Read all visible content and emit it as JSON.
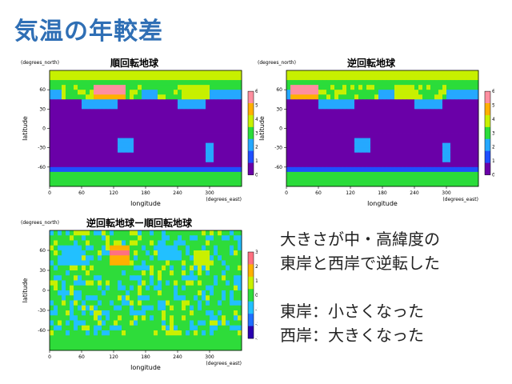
{
  "slide": {
    "title": "気温の年較差"
  },
  "notes": {
    "lines": [
      "大きさが中・高緯度の",
      "東岸と西岸で逆転した"
    ],
    "lines2": [
      "東岸：小さくなった",
      "西岸：大きくなった"
    ]
  },
  "chart_data": [
    {
      "type": "heatmap",
      "title": "順回転地球",
      "xlabel": "longitude",
      "ylabel": "latitude",
      "x_unit": "(degrees_east)",
      "y_unit": "(degrees_north)",
      "x_ticks": [
        "0",
        "60",
        "120",
        "180",
        "240",
        "300"
      ],
      "y_ticks": [
        "60",
        "30",
        "0",
        "-30",
        "-60"
      ],
      "xlim": [
        0,
        360
      ],
      "ylim": [
        -90,
        90
      ],
      "colorbar": {
        "ticks": [
          "60",
          "50",
          "40",
          "30",
          "20",
          "10",
          "0"
        ],
        "range": [
          0,
          60
        ],
        "colors": [
          "#6a00a8",
          "#1f4fff",
          "#25a8ff",
          "#2bdc3a",
          "#c7f000",
          "#ffb000",
          "#ff8fa0"
        ]
      }
    },
    {
      "type": "heatmap",
      "title": "逆回転地球",
      "xlabel": "longitude",
      "ylabel": "latitude",
      "x_unit": "(degrees_east)",
      "y_unit": "(degrees_north)",
      "x_ticks": [
        "0",
        "60",
        "120",
        "180",
        "240",
        "300"
      ],
      "y_ticks": [
        "60",
        "30",
        "0",
        "-30",
        "-60"
      ],
      "xlim": [
        0,
        360
      ],
      "ylim": [
        -90,
        90
      ],
      "colorbar": {
        "ticks": [
          "60",
          "50",
          "40",
          "30",
          "20",
          "10",
          "0"
        ],
        "range": [
          0,
          60
        ],
        "colors": [
          "#6a00a8",
          "#1f4fff",
          "#25a8ff",
          "#2bdc3a",
          "#c7f000",
          "#ffb000",
          "#ff8fa0"
        ]
      }
    },
    {
      "type": "heatmap",
      "title": "逆回転地球ー順回転地球",
      "xlabel": "longitude",
      "ylabel": "latitude",
      "x_unit": "(degrees_east)",
      "y_unit": "(degrees_north)",
      "x_ticks": [
        "0",
        "60",
        "120",
        "180",
        "240",
        "300"
      ],
      "y_ticks": [
        "60",
        "30",
        "0",
        "-30",
        "-60"
      ],
      "xlim": [
        0,
        360
      ],
      "ylim": [
        -90,
        90
      ],
      "colorbar": {
        "ticks": [
          "30",
          "20",
          "10",
          "0",
          "-10",
          "-20",
          "-30"
        ],
        "range": [
          -30,
          30
        ],
        "colors": [
          "#2a00b0",
          "#1f6fff",
          "#22c0ff",
          "#2edc3a",
          "#c9f000",
          "#ffb000",
          "#ff7080"
        ]
      }
    }
  ]
}
